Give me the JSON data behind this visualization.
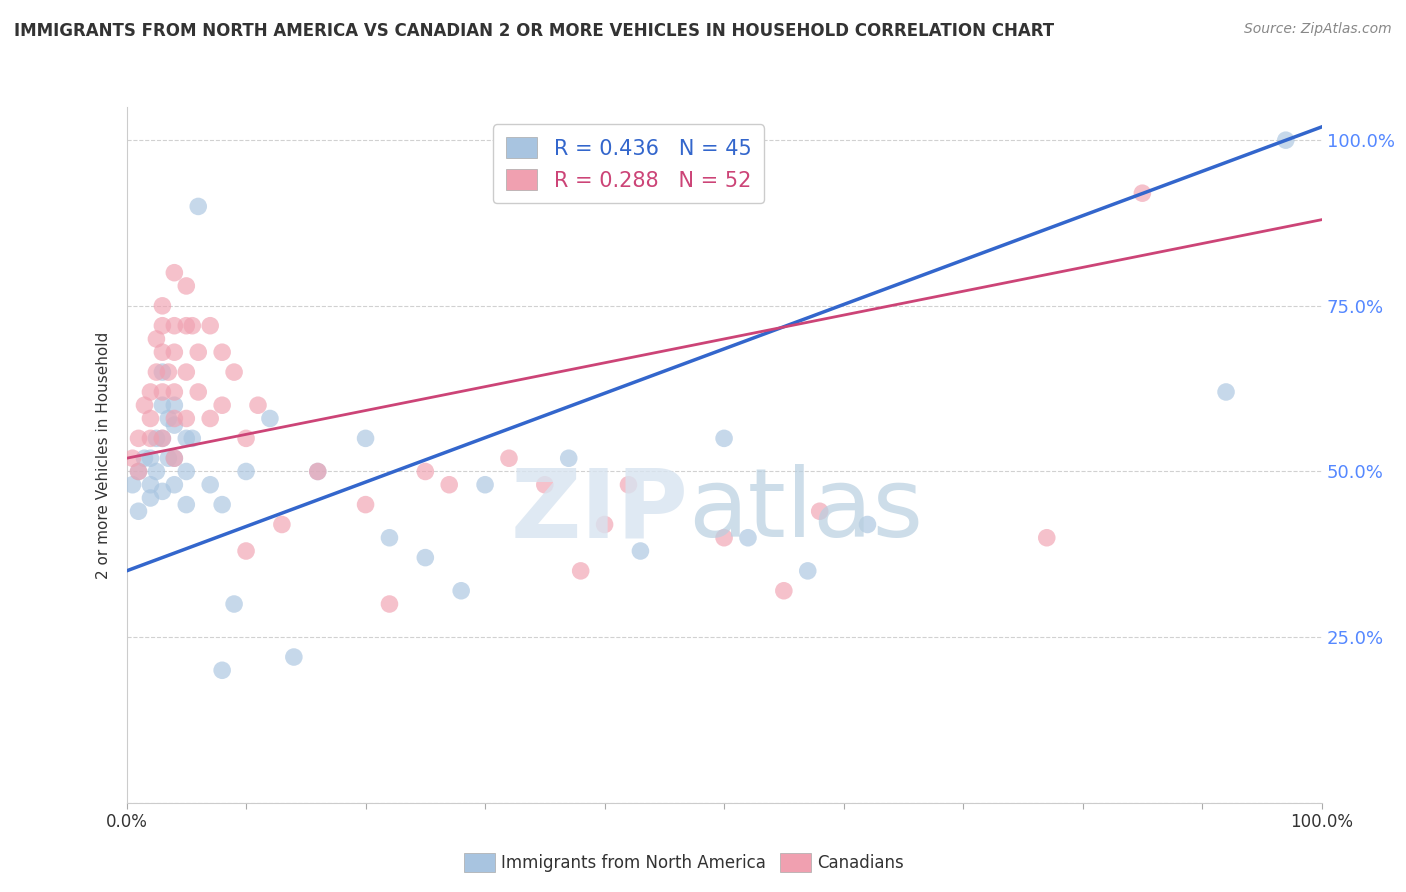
{
  "title": "IMMIGRANTS FROM NORTH AMERICA VS CANADIAN 2 OR MORE VEHICLES IN HOUSEHOLD CORRELATION CHART",
  "source": "Source: ZipAtlas.com",
  "ylabel": "2 or more Vehicles in Household",
  "legend_label_blue": "Immigrants from North America",
  "legend_label_pink": "Canadians",
  "blue_R": 0.436,
  "blue_N": 45,
  "pink_R": 0.288,
  "pink_N": 52,
  "blue_color": "#a8c4e0",
  "pink_color": "#f0a0b0",
  "blue_line_color": "#3366cc",
  "pink_line_color": "#cc4477",
  "xlim": [
    0.0,
    1.0
  ],
  "ylim": [
    0.0,
    1.05
  ],
  "right_yticks": [
    0.25,
    0.5,
    0.75,
    1.0
  ],
  "right_yticklabels": [
    "25.0%",
    "50.0%",
    "75.0%",
    "100.0%"
  ],
  "blue_points_x": [
    0.005,
    0.01,
    0.01,
    0.015,
    0.02,
    0.02,
    0.02,
    0.025,
    0.025,
    0.03,
    0.03,
    0.03,
    0.03,
    0.035,
    0.035,
    0.04,
    0.04,
    0.04,
    0.04,
    0.05,
    0.05,
    0.05,
    0.055,
    0.06,
    0.07,
    0.08,
    0.08,
    0.09,
    0.1,
    0.12,
    0.14,
    0.16,
    0.2,
    0.22,
    0.25,
    0.28,
    0.3,
    0.37,
    0.43,
    0.5,
    0.52,
    0.57,
    0.62,
    0.92,
    0.97
  ],
  "blue_points_y": [
    0.48,
    0.5,
    0.44,
    0.52,
    0.46,
    0.52,
    0.48,
    0.55,
    0.5,
    0.65,
    0.6,
    0.55,
    0.47,
    0.58,
    0.52,
    0.6,
    0.57,
    0.52,
    0.48,
    0.55,
    0.5,
    0.45,
    0.55,
    0.9,
    0.48,
    0.45,
    0.2,
    0.3,
    0.5,
    0.58,
    0.22,
    0.5,
    0.55,
    0.4,
    0.37,
    0.32,
    0.48,
    0.52,
    0.38,
    0.55,
    0.4,
    0.35,
    0.42,
    0.62,
    1.0
  ],
  "pink_points_x": [
    0.005,
    0.01,
    0.01,
    0.015,
    0.02,
    0.02,
    0.02,
    0.025,
    0.025,
    0.03,
    0.03,
    0.03,
    0.03,
    0.03,
    0.035,
    0.04,
    0.04,
    0.04,
    0.04,
    0.04,
    0.04,
    0.05,
    0.05,
    0.05,
    0.05,
    0.055,
    0.06,
    0.06,
    0.07,
    0.07,
    0.08,
    0.08,
    0.09,
    0.1,
    0.1,
    0.11,
    0.13,
    0.16,
    0.2,
    0.22,
    0.25,
    0.27,
    0.32,
    0.35,
    0.38,
    0.4,
    0.42,
    0.5,
    0.55,
    0.58,
    0.77,
    0.85
  ],
  "pink_points_y": [
    0.52,
    0.55,
    0.5,
    0.6,
    0.62,
    0.58,
    0.55,
    0.7,
    0.65,
    0.75,
    0.72,
    0.68,
    0.62,
    0.55,
    0.65,
    0.8,
    0.72,
    0.68,
    0.62,
    0.58,
    0.52,
    0.78,
    0.72,
    0.65,
    0.58,
    0.72,
    0.68,
    0.62,
    0.72,
    0.58,
    0.68,
    0.6,
    0.65,
    0.55,
    0.38,
    0.6,
    0.42,
    0.5,
    0.45,
    0.3,
    0.5,
    0.48,
    0.52,
    0.48,
    0.35,
    0.42,
    0.48,
    0.4,
    0.32,
    0.44,
    0.4,
    0.92
  ],
  "blue_trend_x": [
    0.0,
    1.0
  ],
  "blue_trend_y": [
    0.35,
    1.02
  ],
  "pink_trend_x": [
    0.0,
    1.0
  ],
  "pink_trend_y": [
    0.52,
    0.88
  ]
}
